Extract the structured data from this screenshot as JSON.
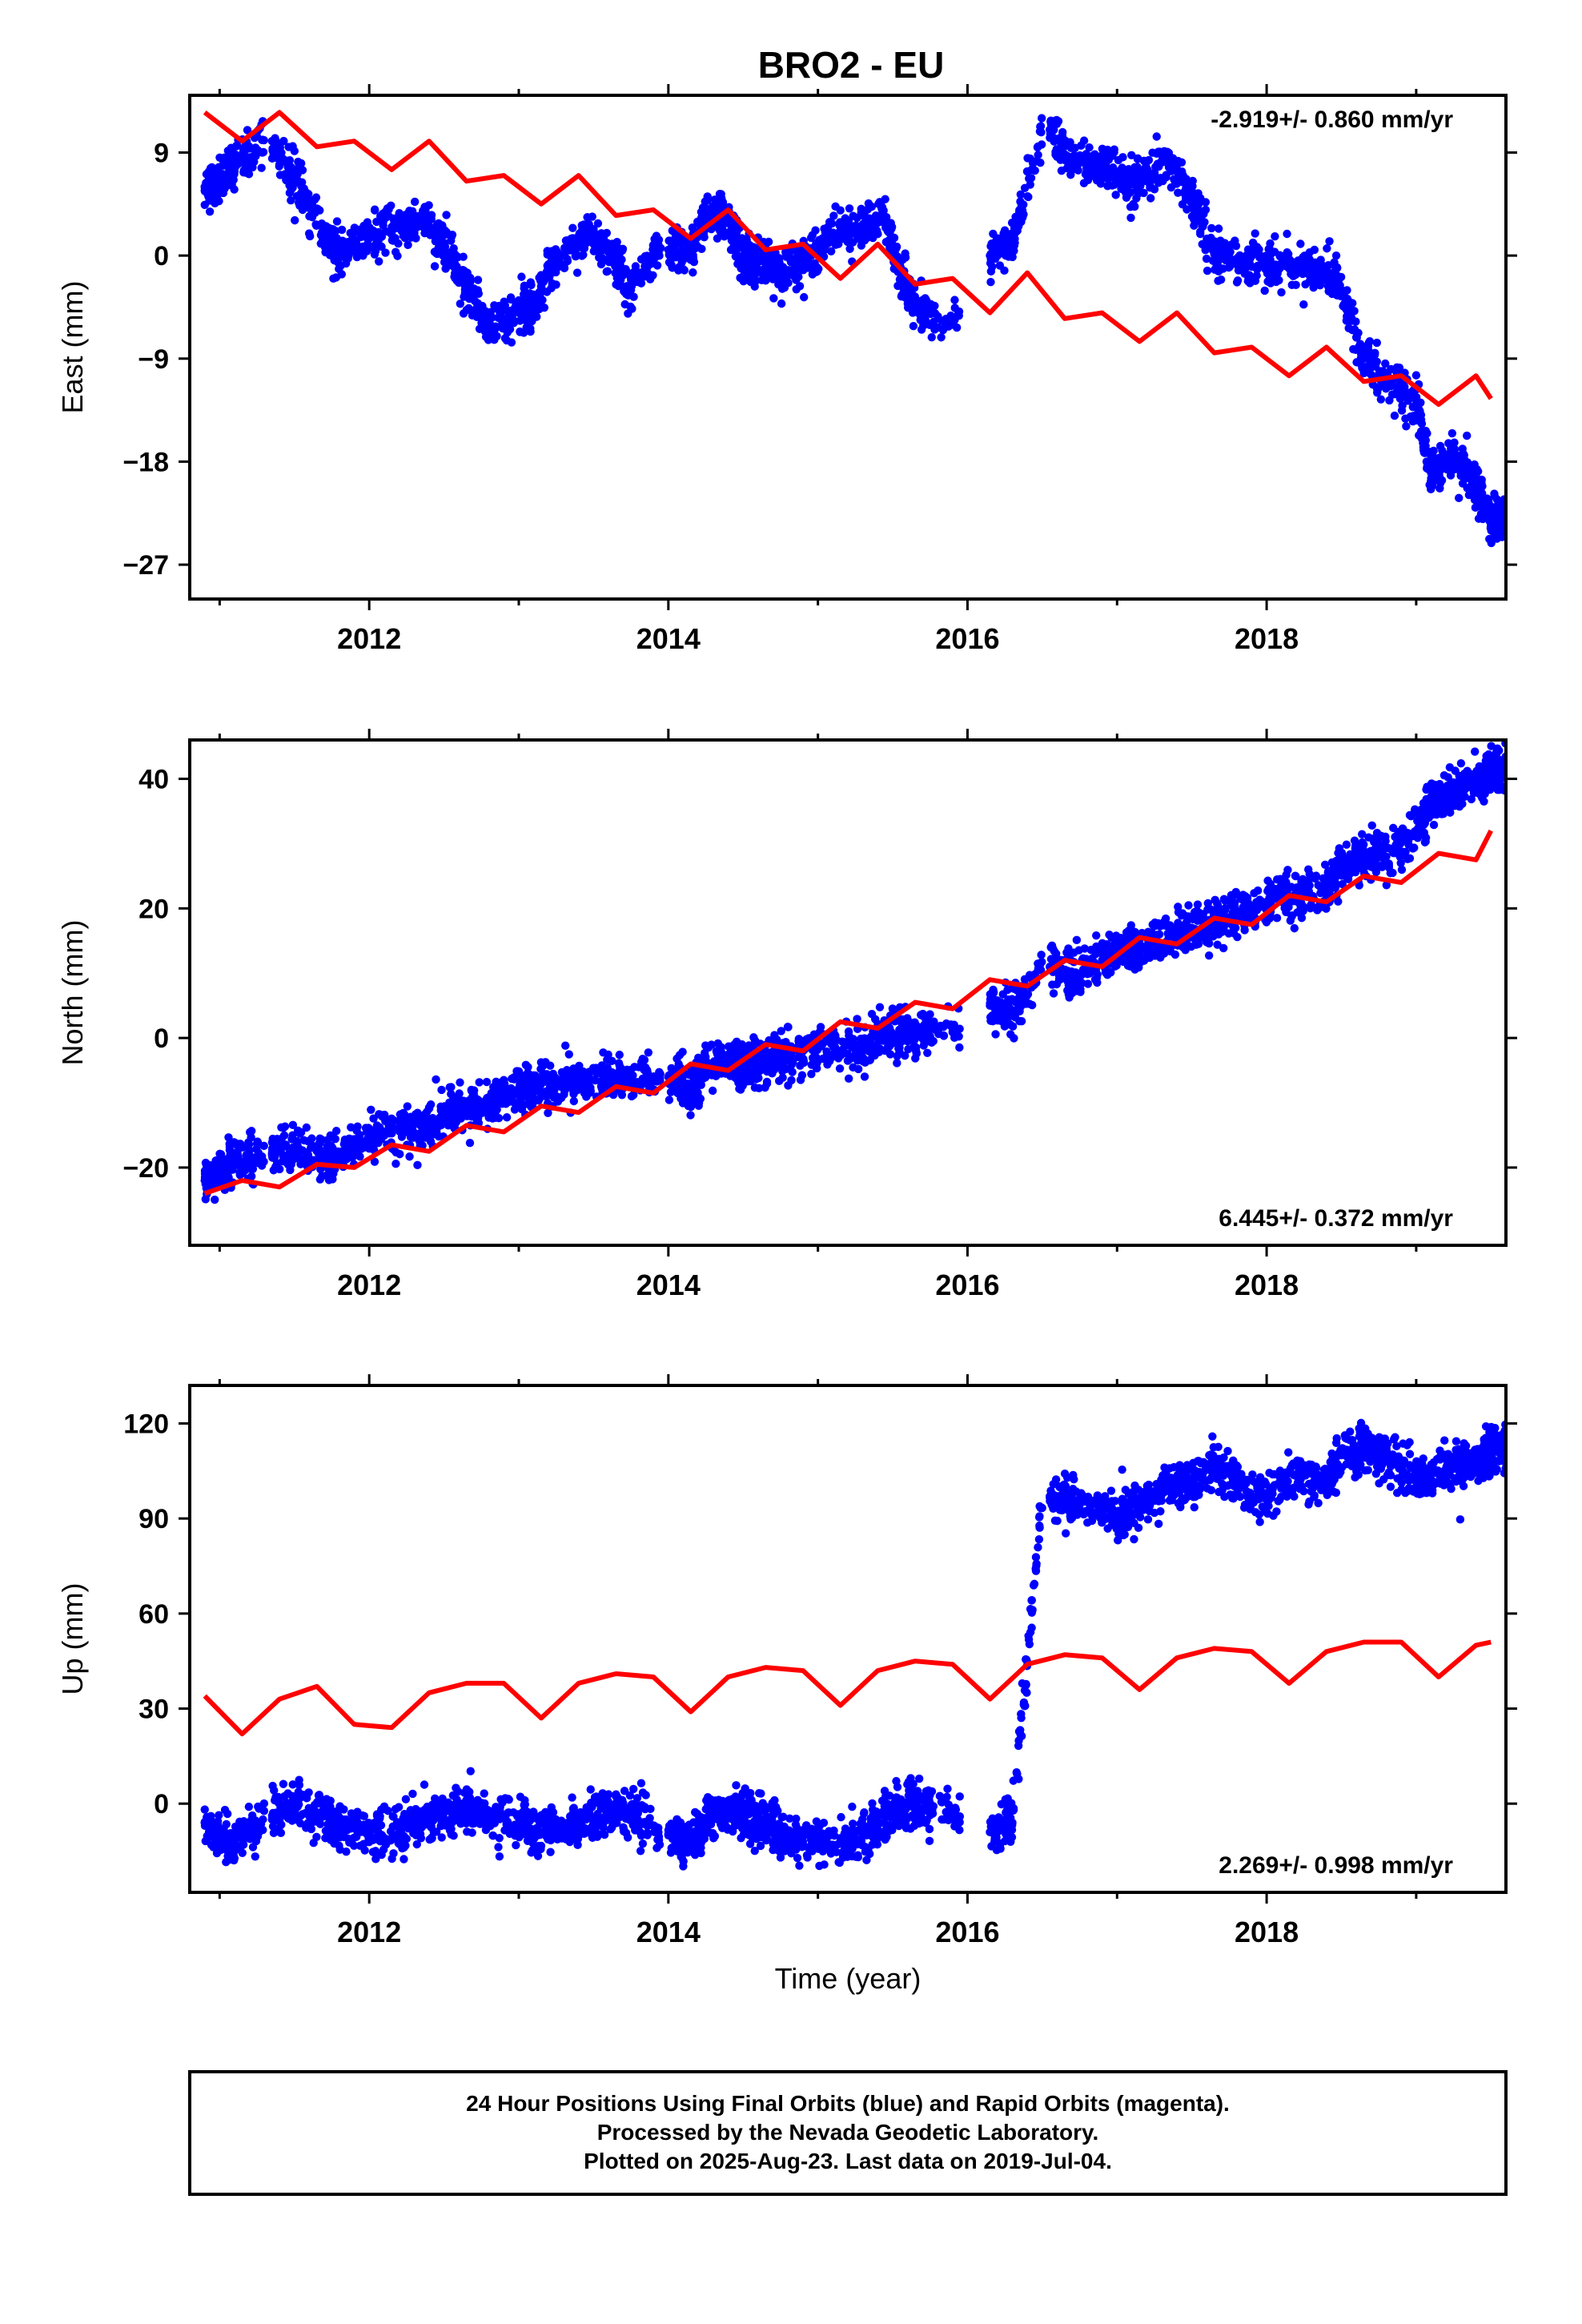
{
  "title": "BRO2 - EU",
  "footer": {
    "line1": "24 Hour Positions Using Final Orbits (blue) and Rapid Orbits (magenta).",
    "line2": "Processed by the Nevada Geodetic Laboratory.",
    "line3": "Plotted on 2025-Aug-23. Last data on 2019-Jul-04."
  },
  "colors": {
    "data": "#0000ff",
    "model": "#ff0000",
    "axis": "#000000"
  },
  "chart_data": [
    {
      "type": "scatter",
      "ylabel": "East (mm)",
      "xlabel": "",
      "xlim": [
        2010.8,
        2019.6
      ],
      "ylim": [
        -30,
        14
      ],
      "x_ticks": [
        2012,
        2014,
        2016,
        2018
      ],
      "y_ticks": [
        -27,
        -18,
        -9,
        0,
        9
      ],
      "y_tick_labels": [
        "−27",
        "−18",
        "−9",
        "0",
        "9"
      ],
      "rate_label": "-2.919+/- 0.860 mm/yr",
      "rate_position": "top-right",
      "series": [
        {
          "kind": "points",
          "x": [
            2010.9,
            2011.0,
            2011.1,
            2011.35,
            2011.5,
            2011.7,
            2011.8,
            2012.0,
            2012.2,
            2012.35,
            2012.5,
            2012.65,
            2012.8,
            2013.0,
            2013.1,
            2013.25,
            2013.45,
            2013.6,
            2013.75,
            2014.0,
            2014.15,
            2014.25,
            2014.4,
            2014.5,
            2014.6,
            2014.75,
            2014.9,
            2015.1,
            2015.3,
            2015.45,
            2015.6,
            2015.75,
            2016.15,
            2016.3,
            2016.55,
            2016.7,
            2016.9,
            2017.05,
            2017.15,
            2017.35,
            2017.5,
            2017.65,
            2017.8,
            2018.0,
            2018.2,
            2018.4,
            2018.5,
            2018.65,
            2018.8,
            2019.0,
            2019.1,
            2019.25,
            2019.4,
            2019.5
          ],
          "y": [
            6,
            6.5,
            8,
            10,
            6.5,
            2,
            0,
            1.5,
            2.5,
            3,
            1,
            -3,
            -6,
            -5,
            -4.5,
            -0.5,
            2,
            0.5,
            -3,
            0.5,
            0,
            3.5,
            3,
            0,
            -0.5,
            -1.5,
            -0.5,
            2,
            2.5,
            3,
            -3,
            -6,
            0,
            1,
            11,
            8,
            8,
            6,
            6.5,
            8,
            5,
            0.5,
            -0.5,
            -0.5,
            -1,
            -1,
            -3,
            -9,
            -11,
            -12.5,
            -19,
            -18,
            -20,
            -23
          ]
        },
        {
          "kind": "line",
          "x": [
            2010.9,
            2011.15,
            2011.4,
            2011.65,
            2011.9,
            2012.15,
            2012.4,
            2012.65,
            2012.9,
            2013.15,
            2013.4,
            2013.65,
            2013.9,
            2014.15,
            2014.4,
            2014.65,
            2014.9,
            2015.15,
            2015.4,
            2015.65,
            2015.9,
            2016.15,
            2016.4,
            2016.65,
            2016.9,
            2017.15,
            2017.4,
            2017.65,
            2017.9,
            2018.15,
            2018.4,
            2018.65,
            2018.9,
            2019.15,
            2019.4,
            2019.5
          ],
          "y": [
            12.5,
            10,
            12.5,
            9.5,
            10,
            7.5,
            10,
            6.5,
            7,
            4.5,
            7,
            3.5,
            4,
            1.5,
            4,
            0.5,
            1,
            -2,
            1,
            -2.5,
            -2,
            -5,
            -1.5,
            -5.5,
            -5,
            -7.5,
            -5,
            -8.5,
            -8,
            -10.5,
            -8,
            -11,
            -10.5,
            -13,
            -10.5,
            -12.5
          ]
        }
      ]
    },
    {
      "type": "scatter",
      "ylabel": "North (mm)",
      "xlabel": "",
      "xlim": [
        2010.8,
        2019.6
      ],
      "ylim": [
        -32,
        46
      ],
      "x_ticks": [
        2012,
        2014,
        2016,
        2018
      ],
      "y_ticks": [
        -20,
        0,
        20,
        40
      ],
      "y_tick_labels": [
        "−20",
        "0",
        "20",
        "40"
      ],
      "rate_label": "6.445+/- 0.372 mm/yr",
      "rate_position": "bottom-right",
      "series": [
        {
          "kind": "points",
          "x": [
            2010.9,
            2011.0,
            2011.1,
            2011.35,
            2011.5,
            2011.7,
            2011.8,
            2012.0,
            2012.2,
            2012.35,
            2012.5,
            2012.65,
            2012.8,
            2013.0,
            2013.1,
            2013.25,
            2013.45,
            2013.6,
            2013.75,
            2014.0,
            2014.15,
            2014.25,
            2014.4,
            2014.5,
            2014.6,
            2014.75,
            2014.9,
            2015.1,
            2015.3,
            2015.45,
            2015.6,
            2015.75,
            2016.15,
            2016.3,
            2016.55,
            2016.7,
            2016.9,
            2017.05,
            2017.15,
            2017.35,
            2017.5,
            2017.65,
            2017.8,
            2018.0,
            2018.2,
            2018.4,
            2018.5,
            2018.65,
            2018.8,
            2019.0,
            2019.1,
            2019.25,
            2019.4,
            2019.5
          ],
          "y": [
            -22,
            -20.5,
            -19,
            -18,
            -17,
            -19,
            -18,
            -15,
            -14,
            -14.5,
            -12,
            -11,
            -10,
            -8,
            -7.5,
            -7,
            -6.5,
            -6,
            -7,
            -6,
            -8,
            -5,
            -3.5,
            -4,
            -4.5,
            -3,
            -2,
            -1,
            -2,
            1,
            0,
            1.5,
            5,
            4,
            11,
            10,
            12,
            14,
            13,
            16,
            17,
            18,
            19,
            21,
            22,
            23,
            26,
            28,
            28,
            32,
            36,
            38,
            40,
            41
          ]
        },
        {
          "kind": "line",
          "x": [
            2010.9,
            2011.15,
            2011.4,
            2011.65,
            2011.9,
            2012.15,
            2012.4,
            2012.65,
            2012.9,
            2013.15,
            2013.4,
            2013.65,
            2013.9,
            2014.15,
            2014.4,
            2014.65,
            2014.9,
            2015.15,
            2015.4,
            2015.65,
            2015.9,
            2016.15,
            2016.4,
            2016.65,
            2016.9,
            2017.15,
            2017.4,
            2017.65,
            2017.9,
            2018.15,
            2018.4,
            2018.65,
            2018.9,
            2019.15,
            2019.4,
            2019.5
          ],
          "y": [
            -24,
            -22,
            -23,
            -19.5,
            -20,
            -16.5,
            -17.5,
            -13.5,
            -14.5,
            -10.5,
            -11.5,
            -7.5,
            -8.5,
            -4,
            -5,
            -1,
            -2,
            2.5,
            1.5,
            5.5,
            4.5,
            9,
            8,
            12,
            11,
            15.5,
            14.5,
            18.5,
            17.5,
            22,
            21,
            25,
            24,
            28.5,
            27.5,
            32
          ]
        }
      ]
    },
    {
      "type": "scatter",
      "ylabel": "Up (mm)",
      "xlabel": "Time (year)",
      "xlim": [
        2010.8,
        2019.6
      ],
      "ylim": [
        -28,
        132
      ],
      "x_ticks": [
        2012,
        2014,
        2016,
        2018
      ],
      "y_ticks": [
        0,
        30,
        60,
        90,
        120
      ],
      "y_tick_labels": [
        "0",
        "30",
        "60",
        "90",
        "120"
      ],
      "rate_label": "2.269+/- 0.998 mm/yr",
      "rate_position": "bottom-right",
      "series": [
        {
          "kind": "points",
          "x": [
            2010.9,
            2011.0,
            2011.1,
            2011.35,
            2011.5,
            2011.7,
            2011.8,
            2012.0,
            2012.2,
            2012.35,
            2012.5,
            2012.65,
            2012.8,
            2013.0,
            2013.1,
            2013.25,
            2013.45,
            2013.6,
            2013.75,
            2014.0,
            2014.15,
            2014.25,
            2014.4,
            2014.5,
            2014.6,
            2014.75,
            2014.9,
            2015.1,
            2015.3,
            2015.45,
            2015.6,
            2015.75,
            2016.15,
            2016.3,
            2016.55,
            2016.7,
            2016.9,
            2017.05,
            2017.15,
            2017.35,
            2017.5,
            2017.65,
            2017.8,
            2018.0,
            2018.2,
            2018.4,
            2018.5,
            2018.65,
            2018.8,
            2019.0,
            2019.1,
            2019.25,
            2019.4,
            2019.5
          ],
          "y": [
            -6,
            -10,
            -12,
            -5,
            0,
            -4,
            -8,
            -10,
            -8,
            -6,
            -3,
            -2,
            -4,
            -6,
            -9,
            -8,
            -5,
            -3,
            -2,
            -10,
            -12,
            -5,
            -2,
            -3,
            -6,
            -9,
            -12,
            -13,
            -10,
            -4,
            0,
            -2,
            -9,
            -6,
            97,
            95,
            93,
            90,
            95,
            100,
            100,
            108,
            100,
            96,
            104,
            102,
            110,
            112,
            110,
            102,
            104,
            106,
            108,
            112
          ]
        },
        {
          "kind": "line",
          "x": [
            2010.9,
            2011.15,
            2011.4,
            2011.65,
            2011.9,
            2012.15,
            2012.4,
            2012.65,
            2012.9,
            2013.15,
            2013.4,
            2013.65,
            2013.9,
            2014.15,
            2014.4,
            2014.65,
            2014.9,
            2015.15,
            2015.4,
            2015.65,
            2015.9,
            2016.15,
            2016.4,
            2016.65,
            2016.9,
            2017.15,
            2017.4,
            2017.65,
            2017.9,
            2018.15,
            2018.4,
            2018.65,
            2018.9,
            2019.15,
            2019.4,
            2019.5
          ],
          "y": [
            34,
            22,
            33,
            37,
            25,
            24,
            35,
            38,
            38,
            27,
            38,
            41,
            40,
            29,
            40,
            43,
            42,
            31,
            42,
            45,
            44,
            33,
            44,
            47,
            46,
            36,
            46,
            49,
            48,
            38,
            48,
            51,
            51,
            40,
            50,
            51
          ]
        }
      ]
    }
  ]
}
